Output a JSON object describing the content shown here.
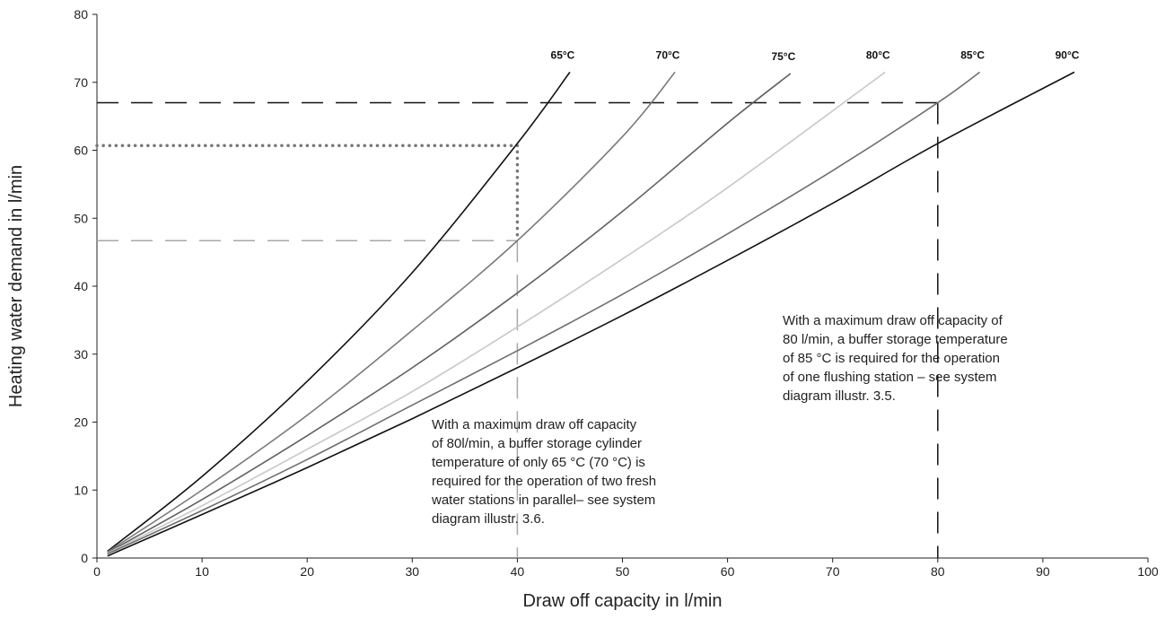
{
  "chart_data": {
    "type": "line",
    "xlabel": "Draw off capacity in l/min",
    "ylabel": "Heating water demand in l/min",
    "xlim": [
      0,
      100
    ],
    "ylim": [
      0,
      80
    ],
    "x_ticks": [
      0,
      10,
      20,
      30,
      40,
      50,
      60,
      70,
      80,
      90,
      100
    ],
    "y_ticks": [
      0,
      10,
      20,
      30,
      40,
      50,
      60,
      70,
      80
    ],
    "grid": false,
    "legend": "none (series labelled at line ends)",
    "series": [
      {
        "name": "65°C",
        "color": "#111111",
        "points": [
          [
            1,
            1.0
          ],
          [
            10,
            12.0
          ],
          [
            20,
            26.0
          ],
          [
            30,
            42.0
          ],
          [
            40,
            61.0
          ],
          [
            45,
            71.5
          ]
        ]
      },
      {
        "name": "70°C",
        "color": "#7a7a7a",
        "points": [
          [
            1,
            0.9
          ],
          [
            10,
            10.0
          ],
          [
            20,
            21.0
          ],
          [
            30,
            33.5
          ],
          [
            40,
            46.7
          ],
          [
            50,
            62.0
          ],
          [
            55,
            71.5
          ]
        ]
      },
      {
        "name": "75°C",
        "color": "#606060",
        "points": [
          [
            1,
            0.8
          ],
          [
            10,
            8.6
          ],
          [
            20,
            18.0
          ],
          [
            30,
            28.0
          ],
          [
            40,
            39.0
          ],
          [
            50,
            51.0
          ],
          [
            60,
            64.0
          ],
          [
            66,
            71.3
          ]
        ]
      },
      {
        "name": "80°C",
        "color": "#c8c8c8",
        "points": [
          [
            1,
            0.7
          ],
          [
            10,
            7.7
          ],
          [
            20,
            16.0
          ],
          [
            30,
            24.5
          ],
          [
            40,
            34.0
          ],
          [
            50,
            44.0
          ],
          [
            60,
            54.5
          ],
          [
            75,
            71.5
          ]
        ]
      },
      {
        "name": "85°C",
        "color": "#6e6e6e",
        "points": [
          [
            1,
            0.6
          ],
          [
            10,
            7.0
          ],
          [
            20,
            14.5
          ],
          [
            30,
            22.5
          ],
          [
            40,
            30.5
          ],
          [
            50,
            38.8
          ],
          [
            60,
            47.7
          ],
          [
            70,
            57.0
          ],
          [
            80,
            67.0
          ],
          [
            84,
            71.5
          ]
        ]
      },
      {
        "name": "90°C",
        "color": "#111111",
        "points": [
          [
            1,
            0.3
          ],
          [
            10,
            6.4
          ],
          [
            20,
            13.3
          ],
          [
            30,
            20.5
          ],
          [
            40,
            28.0
          ],
          [
            50,
            35.7
          ],
          [
            60,
            43.8
          ],
          [
            70,
            52.2
          ],
          [
            80,
            61.0
          ],
          [
            93,
            71.5
          ]
        ]
      }
    ],
    "reference_lines": [
      {
        "style": "dashed",
        "color": "#111111",
        "from": [
          0,
          67
        ],
        "to": [
          80,
          67
        ]
      },
      {
        "style": "dashed",
        "color": "#111111",
        "from": [
          80,
          67
        ],
        "to": [
          80,
          0
        ]
      },
      {
        "style": "dotted",
        "color": "#777777",
        "from": [
          0,
          60.7
        ],
        "to": [
          40,
          60.7
        ]
      },
      {
        "style": "dotted",
        "color": "#777777",
        "from": [
          40,
          60.7
        ],
        "to": [
          40,
          46.7
        ]
      },
      {
        "style": "dashed",
        "color": "#a8a8a8",
        "from": [
          0,
          46.7
        ],
        "to": [
          40,
          46.7
        ]
      },
      {
        "style": "dashed",
        "color": "#a8a8a8",
        "from": [
          40,
          46.7
        ],
        "to": [
          40,
          0
        ]
      }
    ],
    "annotations": [
      {
        "text": "With a maximum draw off capacity of\n80 l/min, a buffer storage temperature\nof 85 °C is required for the operation\nof one flushing station – see system\ndiagram illustr. 3.5."
      },
      {
        "text": "With a maximum draw off capacity\nof 80l/min, a buffer storage cylinder\ntemperature of only 65 °C (70 °C) is\nrequired for the operation of two fresh\nwater stations in parallel– see system\ndiagram illustr. 3.6."
      }
    ]
  }
}
